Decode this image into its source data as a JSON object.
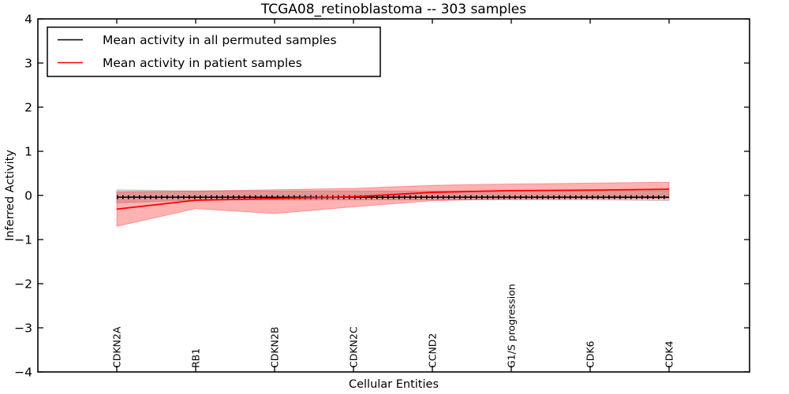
{
  "chart_data": {
    "type": "line",
    "title": "TCGA08_retinoblastoma -- 303 samples",
    "xlabel": "Cellular Entities",
    "ylabel": "Inferred Activity",
    "categories": [
      "CDKN2A",
      "RB1",
      "CDKN2B",
      "CDKN2C",
      "CCND2",
      "G1/S progression",
      "CDK6",
      "CDK4"
    ],
    "ylim": [
      -4,
      4
    ],
    "yticks": [
      -4,
      -3,
      -2,
      -1,
      0,
      1,
      2,
      3,
      4
    ],
    "grid": false,
    "legend_position": "upper left",
    "background": "#ffffff",
    "series": [
      {
        "name": "Mean activity in all permuted samples",
        "color": "#000000",
        "line_style": "solid with small tick markers",
        "values": [
          -0.04,
          -0.04,
          -0.04,
          -0.04,
          -0.04,
          -0.04,
          -0.04,
          -0.04
        ],
        "band_upper": [
          0.13,
          0.1,
          0.1,
          0.1,
          0.1,
          0.1,
          0.1,
          0.11
        ],
        "band_lower": [
          -0.17,
          -0.11,
          -0.1,
          -0.1,
          -0.1,
          -0.1,
          -0.1,
          -0.12
        ],
        "band_color": "rgba(0,0,0,0.16)"
      },
      {
        "name": "Mean activity in patient samples",
        "color": "#ff0000",
        "line_style": "solid",
        "values": [
          -0.31,
          -0.11,
          -0.07,
          -0.03,
          0.07,
          0.11,
          0.12,
          0.14
        ],
        "band_upper": [
          0.08,
          0.1,
          0.13,
          0.16,
          0.23,
          0.26,
          0.28,
          0.3
        ],
        "band_lower": [
          -0.7,
          -0.3,
          -0.41,
          -0.26,
          -0.12,
          -0.08,
          -0.07,
          -0.07
        ],
        "band_color": "rgba(255,0,0,0.30)"
      }
    ],
    "legend": [
      {
        "label": "Mean activity in all permuted samples",
        "color": "#000000"
      },
      {
        "label": "Mean activity in patient samples",
        "color": "#ff0000"
      }
    ]
  }
}
